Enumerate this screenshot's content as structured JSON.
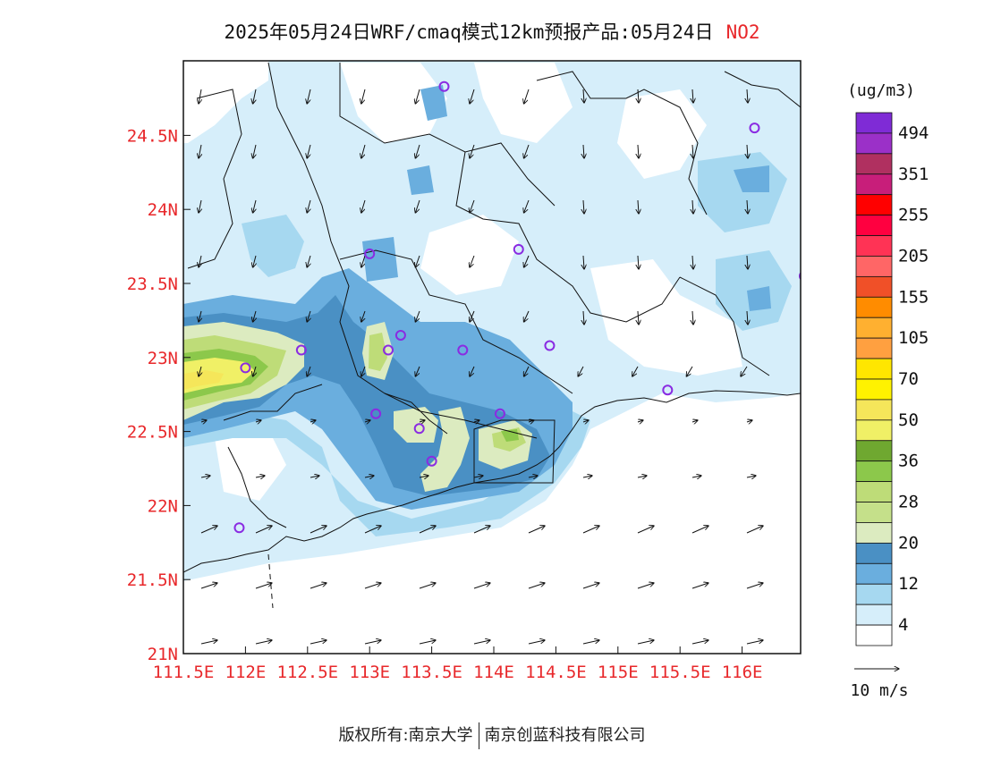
{
  "title": {
    "main": "2025年05月24日WRF/cmaq模式12km预报产品:05月24日",
    "pollutant": "NO2"
  },
  "footer": {
    "left": "版权所有:南京大学",
    "right": "南京创蓝科技有限公司"
  },
  "axes": {
    "lat_labels": [
      "24.5N",
      "24N",
      "23.5N",
      "23N",
      "22.5N",
      "22N",
      "21.5N",
      "21N"
    ],
    "lon_labels": [
      "111.5E",
      "112E",
      "112.5E",
      "113E",
      "113.5E",
      "114E",
      "114.5E",
      "115E",
      "115.5E",
      "116E"
    ],
    "lat_range": [
      21,
      25.0
    ],
    "lon_range": [
      111.5,
      116.5
    ]
  },
  "colorbar": {
    "unit": "(ug/m3)",
    "labels": [
      "494",
      "351",
      "255",
      "205",
      "155",
      "105",
      "70",
      "50",
      "36",
      "28",
      "20",
      "12",
      "4"
    ],
    "colors_top_to_bottom": [
      "#7f2bd6",
      "#9b30c8",
      "#b03060",
      "#c81e7a",
      "#ff0000",
      "#ff0040",
      "#ff3355",
      "#ff6666",
      "#f05028",
      "#ff8c00",
      "#ffb030",
      "#ffa040",
      "#ffe600",
      "#fff200",
      "#f5e65a",
      "#f0f066",
      "#6fa830",
      "#8cc84b",
      "#bedc78",
      "#c5e08a",
      "#dcebc0",
      "#4a90c4",
      "#6aaede",
      "#a6d8f0",
      "#d6eefa",
      "#ffffff"
    ],
    "colors": {
      "very_low": "#d6eefa",
      "low": "#a6d8f0",
      "medium": "#6aaede",
      "high": "#4a90c4",
      "very_high": "#dcebc0",
      "green_low": "#bedc78",
      "green_mid": "#8cc84b",
      "yellow": "#f0f066",
      "yellow_deep": "#f5e65a"
    }
  },
  "wind_legend": {
    "label": "10 m/s"
  },
  "stations": [
    [
      113.6,
      24.83
    ],
    [
      116.1,
      24.55
    ],
    [
      113.0,
      23.7
    ],
    [
      114.2,
      23.73
    ],
    [
      116.5,
      23.55
    ],
    [
      113.15,
      23.05
    ],
    [
      113.25,
      23.15
    ],
    [
      113.75,
      23.05
    ],
    [
      114.45,
      23.08
    ],
    [
      112.45,
      23.05
    ],
    [
      112.0,
      22.93
    ],
    [
      113.05,
      22.62
    ],
    [
      113.4,
      22.52
    ],
    [
      114.05,
      22.62
    ],
    [
      113.5,
      22.3
    ],
    [
      115.4,
      22.78
    ],
    [
      111.95,
      21.85
    ]
  ]
}
